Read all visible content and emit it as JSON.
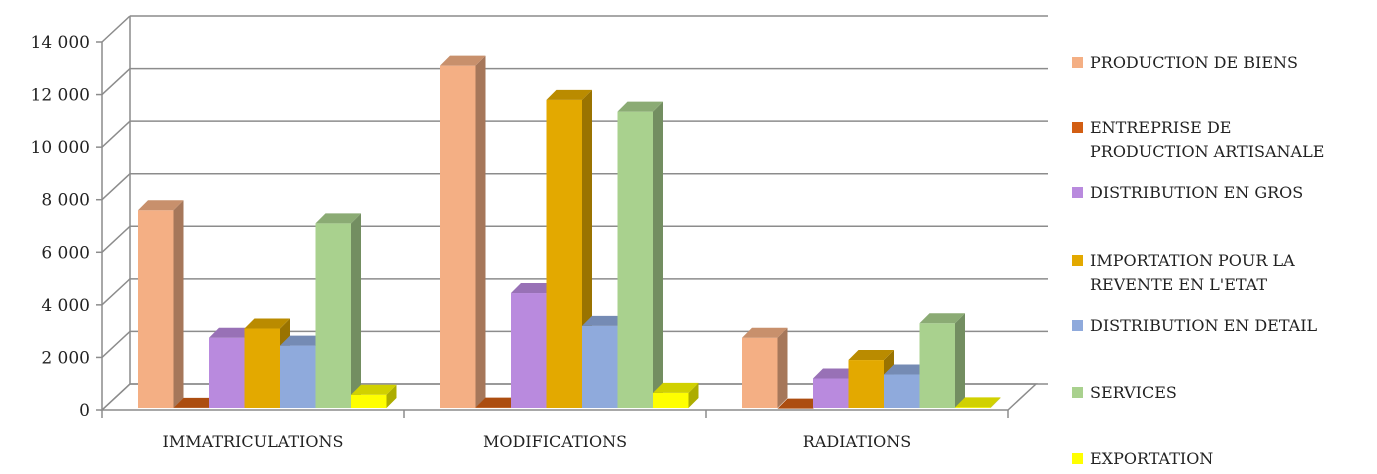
{
  "chart_data": {
    "type": "bar",
    "title": "",
    "xlabel": "",
    "ylabel": "",
    "ylim": [
      0,
      14000
    ],
    "yticks": [
      "0",
      "2 000",
      "4 000",
      "6 000",
      "8 000",
      "10 000",
      "12 000",
      "14 000"
    ],
    "categories": [
      "IMMATRICULATIONS",
      "MODIFICATIONS",
      "RADIATIONS"
    ],
    "grid": true,
    "legend_position": "right",
    "series": [
      {
        "name": "PRODUCTION DE BIENS",
        "color": "#F4AF84",
        "values": [
          7600,
          13100,
          2750
        ]
      },
      {
        "name": "ENTREPRISE DE PRODUCTION ARTISANALE",
        "color": "#D25E13",
        "values": [
          80,
          90,
          50
        ]
      },
      {
        "name": "DISTRIBUTION EN GROS",
        "color": "#B98ADE",
        "values": [
          2750,
          4450,
          1200
        ]
      },
      {
        "name": "IMPORTATION POUR LA REVENTE EN L'ETAT",
        "color": "#E3A900",
        "values": [
          3100,
          11800,
          1900
        ]
      },
      {
        "name": "DISTRIBUTION EN DETAIL",
        "color": "#8FAADC",
        "values": [
          2450,
          3200,
          1350
        ]
      },
      {
        "name": "SERVICES",
        "color": "#A9D18E",
        "values": [
          7100,
          11350,
          3300
        ]
      },
      {
        "name": "EXPORTATION",
        "color": "#FFFF00",
        "values": [
          580,
          650,
          100
        ]
      }
    ]
  }
}
